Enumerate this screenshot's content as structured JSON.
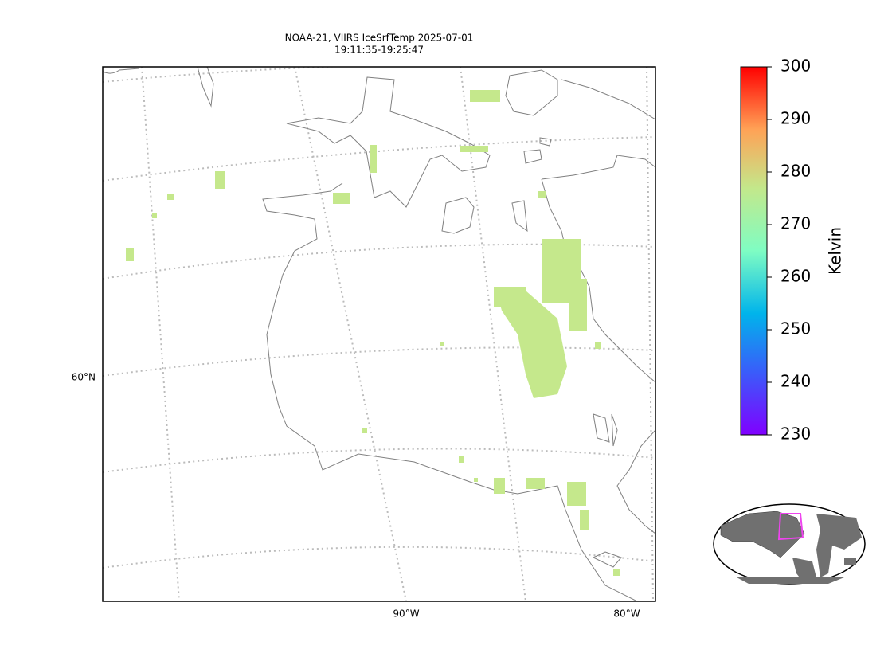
{
  "title_lines": [
    "NOAA-21, VIIRS IceSrfTemp 2025-07-01",
    "19:11:35-19:25:47"
  ],
  "map": {
    "lat_labels": [
      "60°N"
    ],
    "lon_labels": [
      "90°W",
      "80°W"
    ]
  },
  "colorbar": {
    "label": "Kelvin",
    "lim": [
      230,
      300
    ],
    "ticks": [
      230,
      240,
      250,
      260,
      270,
      280,
      290,
      300
    ]
  }
}
